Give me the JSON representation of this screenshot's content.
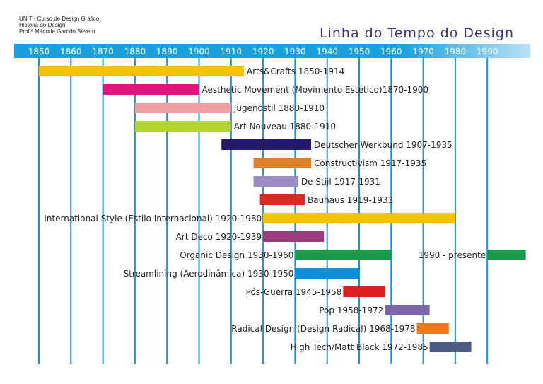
{
  "header": {
    "credits": [
      "UNIT - Curso de Design Gráfico",
      "História do Design",
      "Prof.ª Márjorie Garrido Severo"
    ],
    "title": "Linha do Tempo do Design"
  },
  "chart_data": {
    "type": "bar",
    "orientation": "horizontal-timeline",
    "title": "Linha do Tempo do Design",
    "axis": {
      "ticks": [
        1850,
        1860,
        1870,
        1880,
        1890,
        1900,
        1910,
        1920,
        1930,
        1940,
        1950,
        1960,
        1970,
        1980,
        1990
      ],
      "xlim": [
        1843,
        2010
      ],
      "band_color": "#1aa0dc",
      "gridline_color": "#1e90d2",
      "grid": true
    },
    "bars": [
      {
        "label": "Arts&Crafts 1850-1914",
        "start": 1850,
        "end": 1914,
        "color": "#f5c200",
        "label_side": "right"
      },
      {
        "label": "Aesthetic Movement (Movimento Estético)1870-1900",
        "start": 1870,
        "end": 1900,
        "color": "#e0147c",
        "label_side": "right"
      },
      {
        "label": "Jugendstil 1880-1910",
        "start": 1880,
        "end": 1910,
        "color": "#f0a0a4",
        "label_side": "right"
      },
      {
        "label": "Art Nouveau  1880-1910",
        "start": 1880,
        "end": 1910,
        "color": "#b4d432",
        "label_side": "right"
      },
      {
        "label": "Deutscher Werkbund 1907-1935",
        "start": 1907,
        "end": 1935,
        "color": "#241a6a",
        "label_side": "right"
      },
      {
        "label": "Constructivism 1917-1935",
        "start": 1917,
        "end": 1935,
        "color": "#e0822c",
        "label_side": "right"
      },
      {
        "label": "De Stijl 1917-1931",
        "start": 1917,
        "end": 1931,
        "color": "#9c8cc4",
        "label_side": "right"
      },
      {
        "label": "Bauhaus 1919-1933",
        "start": 1919,
        "end": 1933,
        "color": "#dc2a20",
        "label_side": "right"
      },
      {
        "label": "International Style (Estilo Internacional) 1920-1980",
        "start": 1920,
        "end": 1980,
        "color": "#f5c200",
        "label_side": "left"
      },
      {
        "label": "Art Deco 1920-1939",
        "start": 1920,
        "end": 1939,
        "color": "#9c3c7c",
        "label_side": "left"
      },
      {
        "label": "Organic Design 1930-1960",
        "start": 1930,
        "end": 1960,
        "color": "#149c48",
        "label_side": "left"
      },
      {
        "label": "1990 - presente",
        "start": 1990,
        "end": 2002,
        "color": "#149c48",
        "label_side": "left",
        "same_row_as_previous": true
      },
      {
        "label": "Streamlining (Aerodinâmica) 1930-1950",
        "start": 1930,
        "end": 1950,
        "color": "#0c90dc",
        "label_side": "left"
      },
      {
        "label": "Pós-Guerra 1945-1958",
        "start": 1945,
        "end": 1958,
        "color": "#dc2020",
        "label_side": "left"
      },
      {
        "label": "Pop 1958-1972",
        "start": 1958,
        "end": 1972,
        "color": "#7c64a8",
        "label_side": "left"
      },
      {
        "label": "Radical Design (Design Radical) 1968-1978",
        "start": 1968,
        "end": 1978,
        "color": "#e87c1c",
        "label_side": "left"
      },
      {
        "label": "High Tech/Matt Black 1972-1985",
        "start": 1972,
        "end": 1985,
        "color": "#4c5c84",
        "label_side": "left"
      }
    ]
  }
}
